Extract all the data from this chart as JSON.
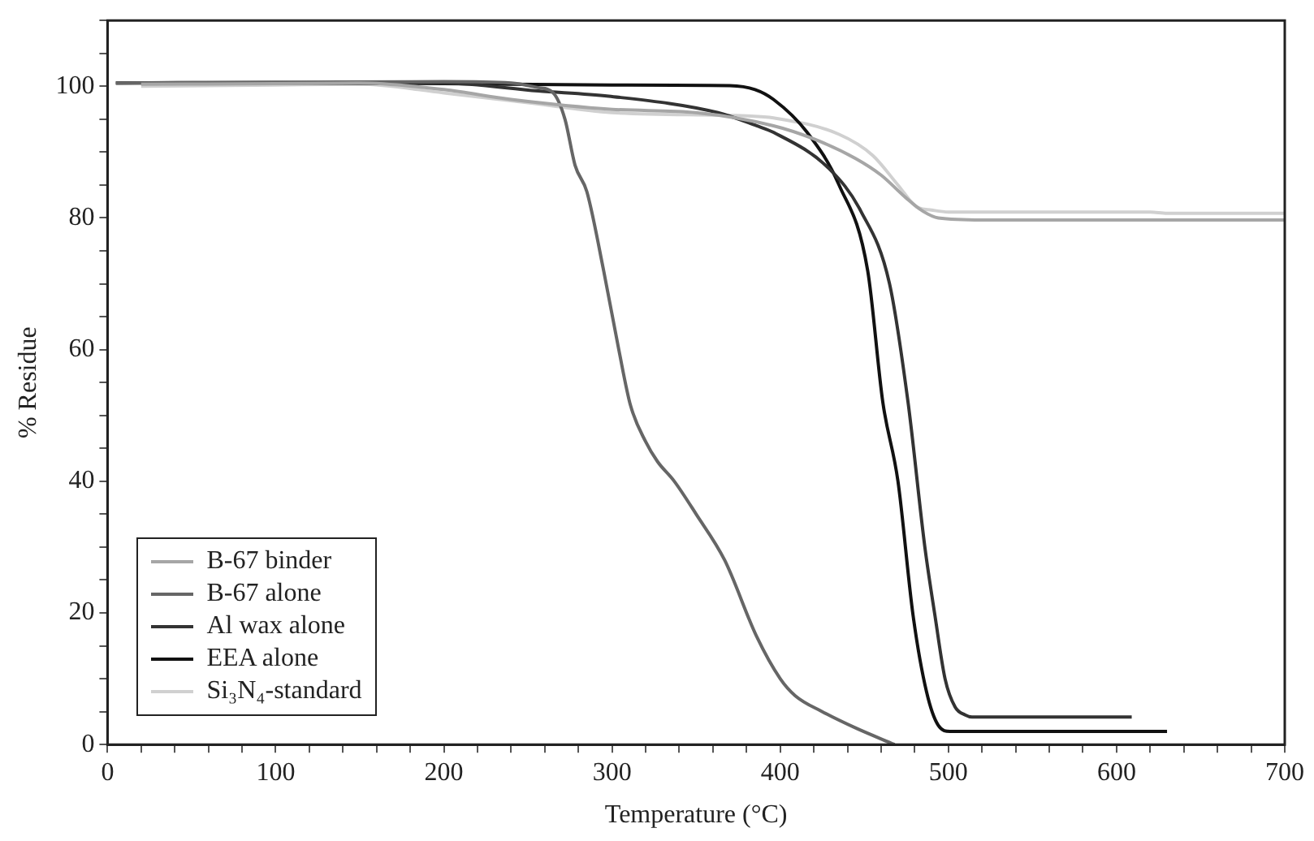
{
  "chart_data": {
    "type": "line",
    "xlabel": "Temperature (°C)",
    "ylabel": "% Residue",
    "xlim": [
      0,
      700
    ],
    "ylim": [
      0,
      110
    ],
    "xticks": [
      0,
      {
        "value": 20,
        "label": null
      },
      {
        "value": 40,
        "label": null
      },
      {
        "value": 60,
        "label": null
      },
      {
        "value": 80,
        "label": null
      },
      100,
      {
        "value": 120,
        "label": null
      },
      {
        "value": 140,
        "label": null
      },
      {
        "value": 160,
        "label": null
      },
      {
        "value": 180,
        "label": null
      },
      200,
      {
        "value": 220,
        "label": null
      },
      {
        "value": 240,
        "label": null
      },
      {
        "value": 260,
        "label": null
      },
      {
        "value": 280,
        "label": null
      },
      300,
      {
        "value": 320,
        "label": null
      },
      {
        "value": 340,
        "label": null
      },
      {
        "value": 360,
        "label": null
      },
      {
        "value": 380,
        "label": null
      },
      400,
      {
        "value": 420,
        "label": null
      },
      {
        "value": 440,
        "label": null
      },
      {
        "value": 460,
        "label": null
      },
      {
        "value": 480,
        "label": null
      },
      500,
      {
        "value": 520,
        "label": null
      },
      {
        "value": 540,
        "label": null
      },
      {
        "value": 560,
        "label": null
      },
      {
        "value": 580,
        "label": null
      },
      600,
      {
        "value": 620,
        "label": null
      },
      {
        "value": 640,
        "label": null
      },
      {
        "value": 660,
        "label": null
      },
      {
        "value": 680,
        "label": null
      },
      700
    ],
    "yticks": [
      0,
      {
        "value": 5,
        "label": null
      },
      {
        "value": 10,
        "label": null
      },
      {
        "value": 15,
        "label": null
      },
      20,
      {
        "value": 25,
        "label": null
      },
      {
        "value": 30,
        "label": null
      },
      {
        "value": 35,
        "label": null
      },
      40,
      {
        "value": 45,
        "label": null
      },
      {
        "value": 50,
        "label": null
      },
      {
        "value": 55,
        "label": null
      },
      60,
      {
        "value": 65,
        "label": null
      },
      {
        "value": 70,
        "label": null
      },
      {
        "value": 75,
        "label": null
      },
      80,
      {
        "value": 85,
        "label": null
      },
      {
        "value": 90,
        "label": null
      },
      {
        "value": 95,
        "label": null
      },
      100,
      {
        "value": 105,
        "label": null
      },
      {
        "value": 110,
        "label": null
      }
    ],
    "grid": false,
    "legend": "bottom left",
    "marker": "none",
    "line_style": "solid",
    "series": [
      {
        "name": "B-67 binder",
        "color": "#a6a6a6",
        "x": [
          20,
          100,
          150,
          200,
          240,
          300,
          350,
          396,
          420,
          445,
          460,
          475,
          485,
          494,
          520,
          621,
          700
        ],
        "values": [
          100.3,
          100.4,
          100.5,
          99.5,
          98,
          96.5,
          96,
          94,
          92,
          89,
          86.5,
          83,
          81,
          80,
          79.7,
          79.7,
          79.7
        ]
      },
      {
        "name": "B-67 alone",
        "color": "#666666",
        "x": [
          5,
          100,
          200,
          240,
          256,
          265,
          272,
          278,
          285,
          295,
          304,
          311,
          320,
          327,
          337,
          350,
          367,
          386,
          400,
          409,
          425,
          445,
          468
        ],
        "values": [
          100.5,
          100.6,
          100.7,
          100.5,
          99.8,
          99,
          95,
          88,
          84,
          72,
          60,
          51.5,
          46,
          43,
          40,
          35,
          28,
          16.4,
          10,
          7.4,
          5,
          2.5,
          0
        ]
      },
      {
        "name": "Al wax alone",
        "color": "#333333",
        "x": [
          5,
          100,
          200,
          256,
          298,
          363,
          386,
          396,
          429,
          448,
          465,
          476,
          486,
          492,
          498,
          504,
          510,
          514,
          609
        ],
        "values": [
          100.5,
          100.6,
          100.5,
          99.3,
          98.5,
          96,
          94,
          93,
          87.5,
          81,
          70,
          52,
          30,
          19.6,
          10,
          5.7,
          4.5,
          4.2,
          4.2
        ]
      },
      {
        "name": "EEA alone",
        "color": "#111111",
        "x": [
          5,
          100,
          200,
          300,
          370,
          385,
          396,
          416,
          435,
          452,
          461,
          470,
          479,
          487,
          494,
          501,
          630
        ],
        "values": [
          100.5,
          100.5,
          100.4,
          100.2,
          100.1,
          99.5,
          98,
          93,
          85,
          72,
          52,
          40,
          19.6,
          8,
          2.9,
          2,
          2
        ]
      },
      {
        "name": "Si₃N₄-standard",
        "color": "#d0d0d0",
        "x": [
          20,
          100,
          150,
          200,
          250,
          300,
          380,
          396,
          435,
          455,
          470,
          481,
          490,
          500,
          620,
          630,
          700
        ],
        "values": [
          100,
          100.2,
          100.3,
          99,
          97.5,
          96,
          95.5,
          95.2,
          92.7,
          89.5,
          85,
          81.7,
          81.2,
          80.9,
          80.9,
          80.7,
          80.7
        ]
      }
    ]
  }
}
